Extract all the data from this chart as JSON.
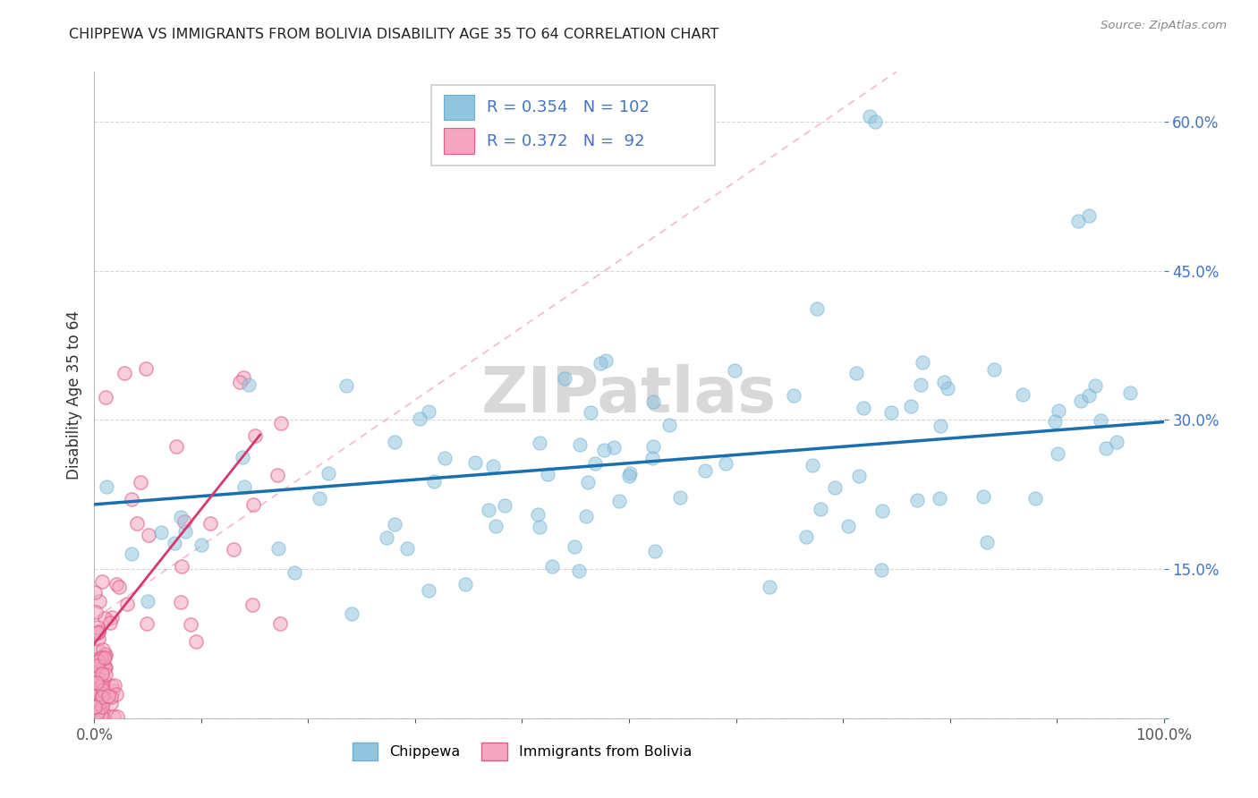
{
  "title": "CHIPPEWA VS IMMIGRANTS FROM BOLIVIA DISABILITY AGE 35 TO 64 CORRELATION CHART",
  "source": "Source: ZipAtlas.com",
  "ylabel": "Disability Age 35 to 64",
  "xlim": [
    0,
    1.0
  ],
  "ylim": [
    0,
    0.65
  ],
  "chippewa_R": 0.354,
  "chippewa_N": 102,
  "bolivia_R": 0.372,
  "bolivia_N": 92,
  "chippewa_color": "#92c5de",
  "bolivia_color": "#f4a6c0",
  "chippewa_edge_color": "#6baed6",
  "bolivia_edge_color": "#e05c8a",
  "chippewa_line_color": "#1a6faf",
  "bolivia_line_color": "#d6396b",
  "bolivia_dash_color": "#f4a6c0",
  "watermark_color": "#d8d8d8",
  "legend_labels": [
    "Chippewa",
    "Immigrants from Bolivia"
  ],
  "label_color": "#4472c4",
  "tick_color_x": "#555555",
  "tick_color_y": "#4472c4"
}
